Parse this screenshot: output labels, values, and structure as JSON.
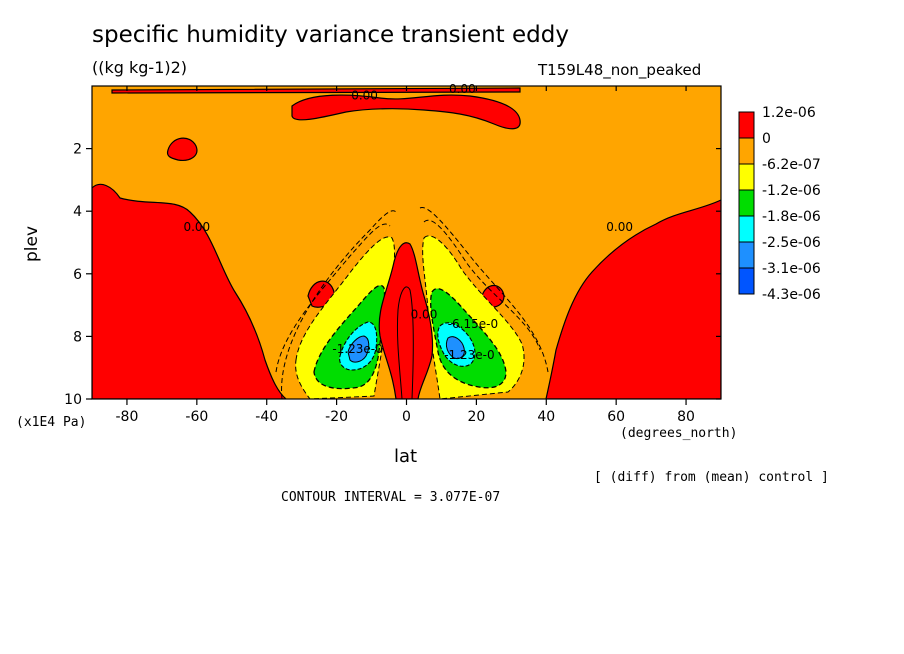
{
  "chart_data": {
    "type": "heatmap",
    "title": "specific humidity variance transient eddy",
    "units": "((kg kg-1)2)",
    "run_label": "T159L48_non_peaked",
    "xlabel": "lat",
    "x_units": "(degrees_north)",
    "ylabel": "plev",
    "y_units": "(x1E4 Pa)",
    "xlim": [
      -90,
      90
    ],
    "ylim": [
      10,
      0
    ],
    "x_ticks": [
      -80,
      -60,
      -40,
      -20,
      0,
      20,
      40,
      60,
      80
    ],
    "y_ticks": [
      2,
      4,
      6,
      8,
      10
    ],
    "note": "[ (diff) from (mean) control ]",
    "contour_interval": "CONTOUR INTERVAL = 3.077E-07",
    "legend": {
      "labels": [
        "1.2e-06",
        "0",
        "-6.2e-07",
        "-1.2e-06",
        "-1.8e-06",
        "-2.5e-06",
        "-3.1e-06",
        "-4.3e-06"
      ],
      "colors": [
        "#ff0000",
        "#ffa500",
        "#ffff00",
        "#00dd00",
        "#00ffff",
        "#1e90ff",
        "#0055ff"
      ]
    },
    "contour_labels": [
      {
        "text": "0.00",
        "lat": -12,
        "plev": 0.3
      },
      {
        "text": "0.00",
        "lat": 16,
        "plev": 0.1
      },
      {
        "text": "0.00",
        "lat": -60,
        "plev": 4.5
      },
      {
        "text": "0.00",
        "lat": 61,
        "plev": 4.5
      },
      {
        "text": "0.00",
        "lat": 5,
        "plev": 7.3
      },
      {
        "text": "-6.15e-0",
        "lat": 19,
        "plev": 7.6
      },
      {
        "text": "-1.23e-0",
        "lat": -14,
        "plev": 8.4
      },
      {
        "text": "-1.23e-0",
        "lat": 18,
        "plev": 8.6
      }
    ]
  }
}
